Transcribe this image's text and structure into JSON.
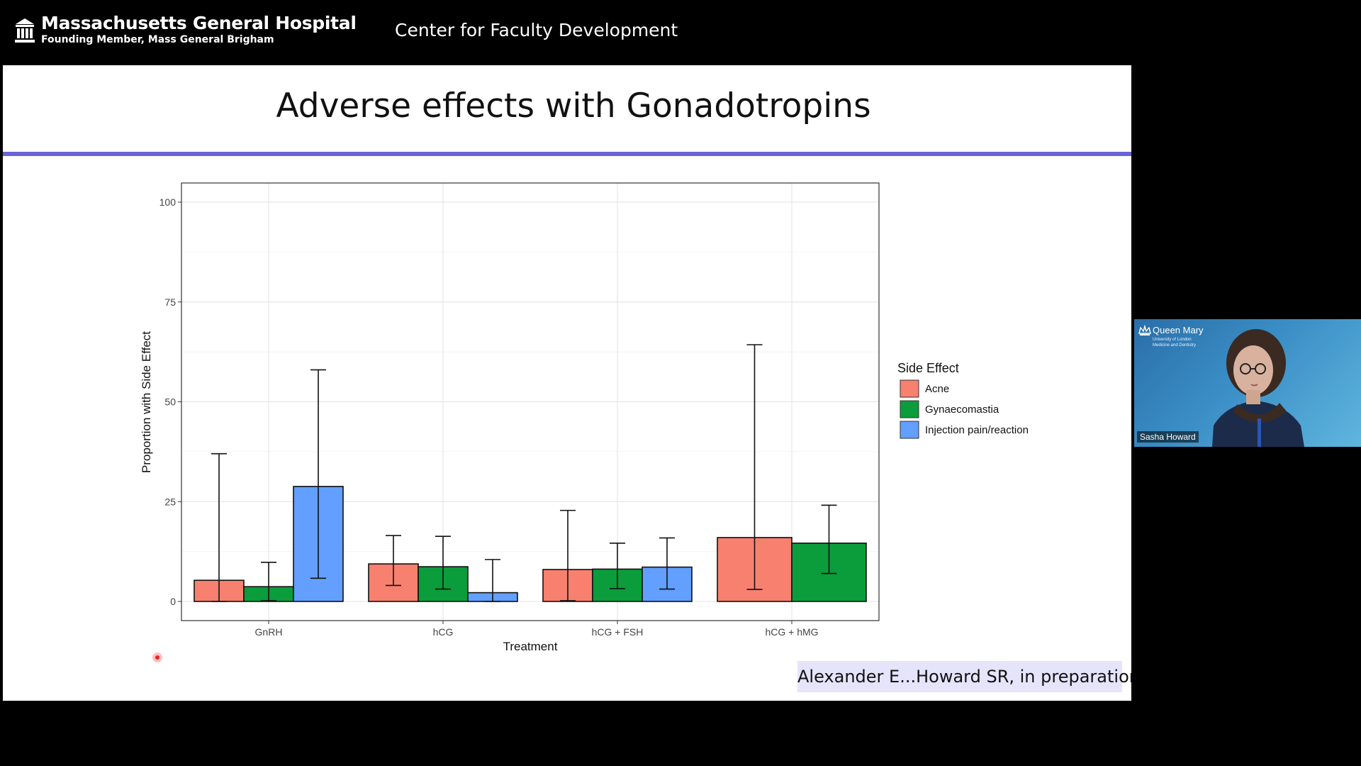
{
  "header": {
    "org_name": "Massachusetts General Hospital",
    "org_subtitle": "Founding Member, Mass General Brigham",
    "center_title": "Center for Faculty Development",
    "logo_icon": "building-columns-icon"
  },
  "slide": {
    "title": "Adverse effects with Gonadotropins",
    "citation": "Alexander E...Howard SR, in preparation",
    "accent_color": "#6c63d4"
  },
  "chart_data": {
    "type": "bar",
    "xlabel": "Treatment",
    "ylabel": "Proportion with Side Effect",
    "ylim": [
      0,
      100
    ],
    "yticks": [
      "0",
      "25",
      "50",
      "75",
      "100"
    ],
    "categories": [
      "GnRH",
      "hCG",
      "hCG + FSH",
      "hCG + hMG"
    ],
    "legend_title": "Side Effect",
    "legend_position": "right",
    "grid": true,
    "series": [
      {
        "name": "Acne",
        "color": "#f8806f",
        "values": [
          5.3,
          9.4,
          8.0,
          16.0
        ],
        "err_low": [
          0,
          4.0,
          0.2,
          3.0
        ],
        "err_high": [
          37.0,
          16.5,
          22.8,
          64.3
        ]
      },
      {
        "name": "Gynaecomastia",
        "color": "#0b9c3c",
        "values": [
          3.7,
          8.7,
          8.1,
          14.6
        ],
        "err_low": [
          0.2,
          3.1,
          3.2,
          7.0
        ],
        "err_high": [
          9.8,
          16.3,
          14.6,
          24.1
        ]
      },
      {
        "name": "Injection pain/reaction",
        "color": "#629fff",
        "values": [
          28.8,
          2.2,
          8.6,
          null
        ],
        "err_low": [
          5.8,
          0,
          3.1,
          null
        ],
        "err_high": [
          58.0,
          10.5,
          15.9,
          null
        ]
      }
    ]
  },
  "video": {
    "institution": "Queen Mary",
    "institution_line1": "University of London",
    "institution_line2": "Medicine and Dentistry",
    "speaker_name": "Sasha Howard"
  }
}
